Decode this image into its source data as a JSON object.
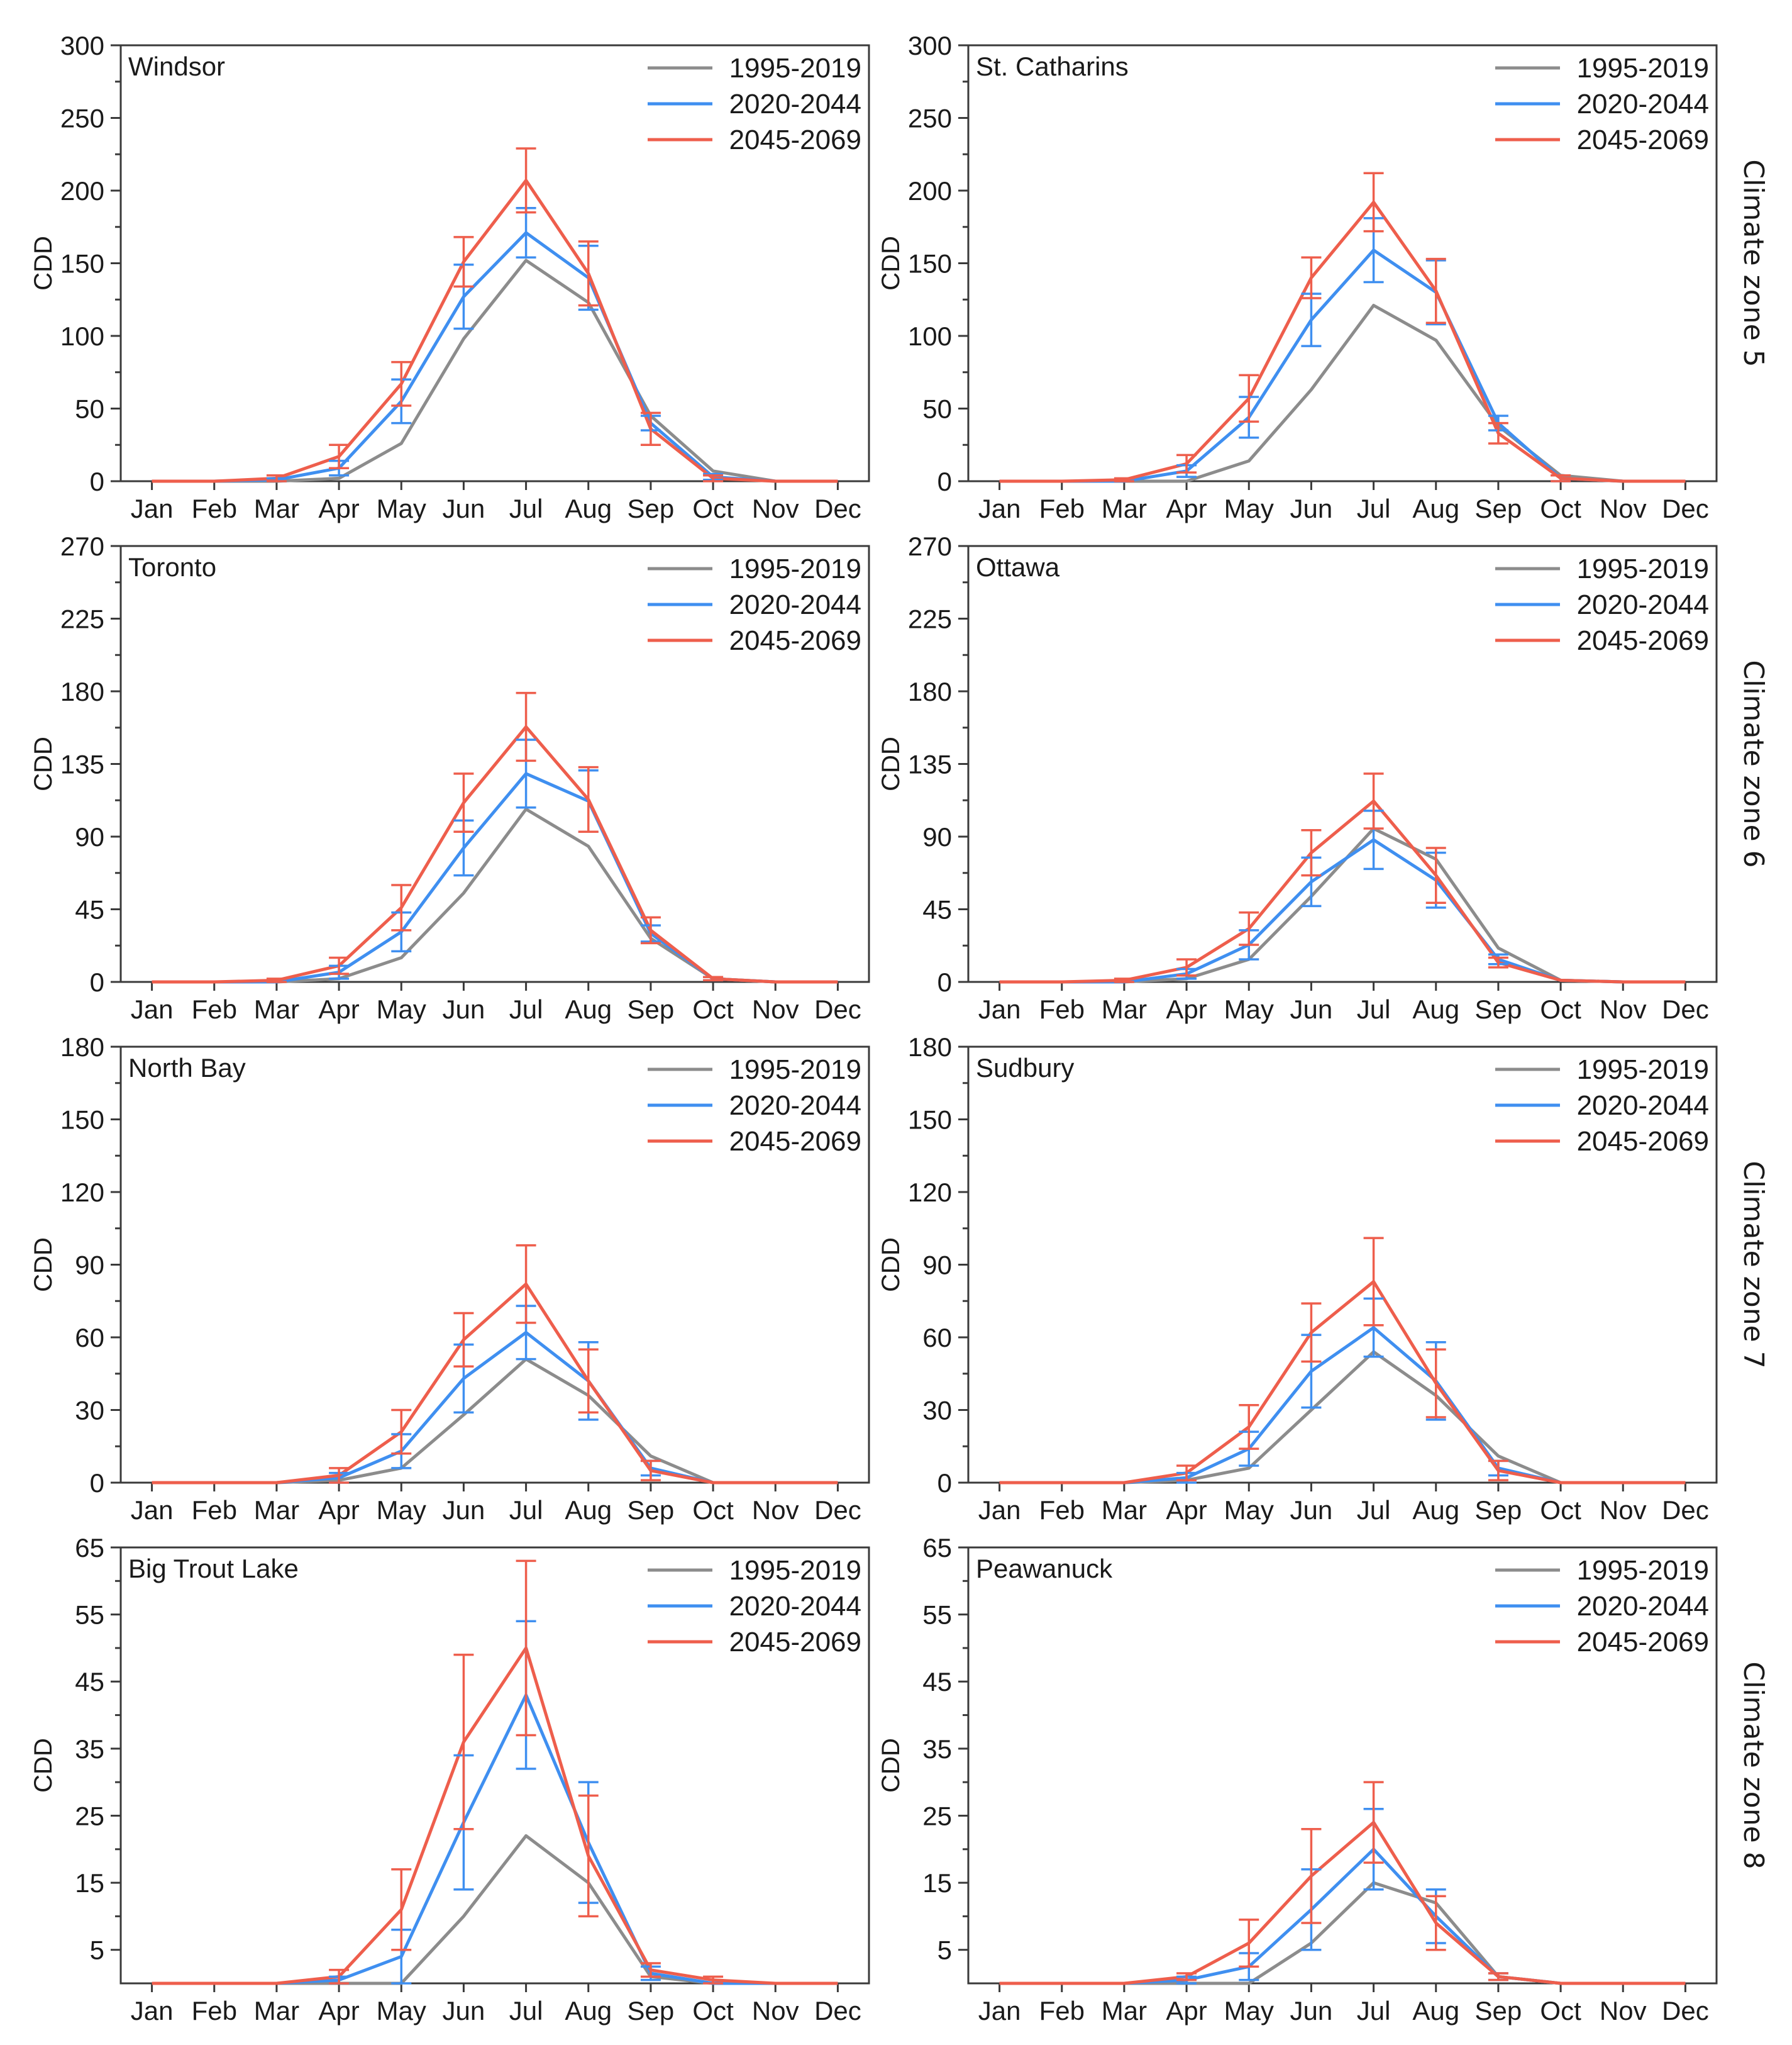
{
  "figure": {
    "months": [
      "Jan",
      "Feb",
      "Mar",
      "Apr",
      "May",
      "Jun",
      "Jul",
      "Aug",
      "Sep",
      "Oct",
      "Nov",
      "Dec"
    ],
    "ylabel": "CDD",
    "legend": [
      {
        "label": "1995-2019",
        "color": "#8c8c8c"
      },
      {
        "label": "2020-2044",
        "color": "#3f8ff0"
      },
      {
        "label": "2045-2069",
        "color": "#ee5e4c"
      }
    ],
    "zones": [
      "Climate zone 5",
      "Climate zone 6",
      "Climate zone 7",
      "Climate zone 8"
    ]
  },
  "chart_data": [
    {
      "type": "line",
      "title": "Windsor",
      "xlabel": "",
      "ylabel": "CDD",
      "ylim": [
        0,
        300
      ],
      "yticks": [
        0,
        50,
        100,
        150,
        200,
        250,
        300
      ],
      "categories": [
        "Jan",
        "Feb",
        "Mar",
        "Apr",
        "May",
        "Jun",
        "Jul",
        "Aug",
        "Sep",
        "Oct",
        "Nov",
        "Dec"
      ],
      "series": [
        {
          "name": "1995-2019",
          "values": [
            0,
            0,
            0,
            2,
            26,
            98,
            152,
            123,
            45,
            7,
            0,
            0
          ]
        },
        {
          "name": "2020-2044",
          "values": [
            0,
            0,
            1,
            9,
            55,
            127,
            171,
            140,
            40,
            3,
            0,
            0
          ],
          "errors": [
            0,
            0,
            1,
            5,
            15,
            22,
            17,
            22,
            5,
            2,
            0,
            0
          ]
        },
        {
          "name": "2045-2069",
          "values": [
            0,
            0,
            2,
            17,
            67,
            151,
            207,
            143,
            36,
            2,
            0,
            0
          ],
          "errors": [
            0,
            0,
            2,
            8,
            15,
            17,
            22,
            22,
            11,
            2,
            0,
            0
          ]
        }
      ]
    },
    {
      "type": "line",
      "title": "St. Catharins",
      "xlabel": "",
      "ylabel": "CDD",
      "ylim": [
        0,
        300
      ],
      "yticks": [
        0,
        50,
        100,
        150,
        200,
        250,
        300
      ],
      "categories": [
        "Jan",
        "Feb",
        "Mar",
        "Apr",
        "May",
        "Jun",
        "Jul",
        "Aug",
        "Sep",
        "Oct",
        "Nov",
        "Dec"
      ],
      "series": [
        {
          "name": "1995-2019",
          "values": [
            0,
            0,
            0,
            0,
            14,
            63,
            121,
            97,
            38,
            4,
            0,
            0
          ]
        },
        {
          "name": "2020-2044",
          "values": [
            0,
            0,
            0,
            7,
            44,
            111,
            159,
            130,
            40,
            2,
            0,
            0
          ],
          "errors": [
            0,
            0,
            0,
            4,
            14,
            18,
            22,
            22,
            5,
            2,
            0,
            0
          ]
        },
        {
          "name": "2045-2069",
          "values": [
            0,
            0,
            1,
            12,
            57,
            140,
            192,
            131,
            33,
            2,
            0,
            0
          ],
          "errors": [
            0,
            0,
            1,
            6,
            16,
            14,
            20,
            22,
            7,
            2,
            0,
            0
          ]
        }
      ]
    },
    {
      "type": "line",
      "title": "Toronto",
      "xlabel": "",
      "ylabel": "CDD",
      "ylim": [
        0,
        270
      ],
      "yticks": [
        0,
        45,
        90,
        135,
        180,
        225,
        270
      ],
      "categories": [
        "Jan",
        "Feb",
        "Mar",
        "Apr",
        "May",
        "Jun",
        "Jul",
        "Aug",
        "Sep",
        "Oct",
        "Nov",
        "Dec"
      ],
      "series": [
        {
          "name": "1995-2019",
          "values": [
            0,
            0,
            0,
            2,
            15,
            55,
            107,
            84,
            27,
            2,
            0,
            0
          ]
        },
        {
          "name": "2020-2044",
          "values": [
            0,
            0,
            0,
            6,
            31,
            83,
            129,
            112,
            30,
            2,
            0,
            0
          ],
          "errors": [
            0,
            0,
            0,
            4,
            12,
            17,
            21,
            19,
            5,
            1,
            0,
            0
          ]
        },
        {
          "name": "2045-2069",
          "values": [
            0,
            0,
            1,
            10,
            46,
            111,
            158,
            113,
            32,
            2,
            0,
            0
          ],
          "errors": [
            0,
            0,
            1,
            5,
            14,
            18,
            21,
            20,
            8,
            1,
            0,
            0
          ]
        }
      ]
    },
    {
      "type": "line",
      "title": "Ottawa",
      "xlabel": "",
      "ylabel": "CDD",
      "ylim": [
        0,
        270
      ],
      "yticks": [
        0,
        45,
        90,
        135,
        180,
        225,
        270
      ],
      "categories": [
        "Jan",
        "Feb",
        "Mar",
        "Apr",
        "May",
        "Jun",
        "Jul",
        "Aug",
        "Sep",
        "Oct",
        "Nov",
        "Dec"
      ],
      "series": [
        {
          "name": "1995-2019",
          "values": [
            0,
            0,
            0,
            2,
            14,
            53,
            95,
            76,
            21,
            1,
            0,
            0
          ]
        },
        {
          "name": "2020-2044",
          "values": [
            0,
            0,
            0,
            5,
            23,
            62,
            88,
            63,
            14,
            1,
            0,
            0
          ],
          "errors": [
            0,
            0,
            0,
            3,
            9,
            15,
            18,
            17,
            3,
            0,
            0,
            0
          ]
        },
        {
          "name": "2045-2069",
          "values": [
            0,
            0,
            1,
            9,
            33,
            80,
            112,
            66,
            12,
            1,
            0,
            0
          ],
          "errors": [
            0,
            0,
            1,
            5,
            10,
            14,
            17,
            17,
            3,
            0,
            0,
            0
          ]
        }
      ]
    },
    {
      "type": "line",
      "title": "North Bay",
      "xlabel": "",
      "ylabel": "CDD",
      "ylim": [
        0,
        180
      ],
      "yticks": [
        0,
        30,
        60,
        90,
        120,
        150,
        180
      ],
      "categories": [
        "Jan",
        "Feb",
        "Mar",
        "Apr",
        "May",
        "Jun",
        "Jul",
        "Aug",
        "Sep",
        "Oct",
        "Nov",
        "Dec"
      ],
      "series": [
        {
          "name": "1995-2019",
          "values": [
            0,
            0,
            0,
            1,
            6,
            28,
            51,
            36,
            11,
            0,
            0,
            0
          ]
        },
        {
          "name": "2020-2044",
          "values": [
            0,
            0,
            0,
            2,
            13,
            43,
            62,
            42,
            6,
            0,
            0,
            0
          ],
          "errors": [
            0,
            0,
            0,
            2,
            7,
            14,
            11,
            16,
            3,
            0,
            0,
            0
          ]
        },
        {
          "name": "2045-2069",
          "values": [
            0,
            0,
            0,
            3,
            21,
            59,
            82,
            42,
            5,
            0,
            0,
            0
          ],
          "errors": [
            0,
            0,
            0,
            3,
            9,
            11,
            16,
            13,
            4,
            0,
            0,
            0
          ]
        }
      ]
    },
    {
      "type": "line",
      "title": "Sudbury",
      "xlabel": "",
      "ylabel": "CDD",
      "ylim": [
        0,
        180
      ],
      "yticks": [
        0,
        30,
        60,
        90,
        120,
        150,
        180
      ],
      "categories": [
        "Jan",
        "Feb",
        "Mar",
        "Apr",
        "May",
        "Jun",
        "Jul",
        "Aug",
        "Sep",
        "Oct",
        "Nov",
        "Dec"
      ],
      "series": [
        {
          "name": "1995-2019",
          "values": [
            0,
            0,
            0,
            1,
            6,
            30,
            54,
            36,
            11,
            0,
            0,
            0
          ]
        },
        {
          "name": "2020-2044",
          "values": [
            0,
            0,
            0,
            2,
            14,
            46,
            64,
            42,
            6,
            0,
            0,
            0
          ],
          "errors": [
            0,
            0,
            0,
            2,
            7,
            15,
            12,
            16,
            3,
            0,
            0,
            0
          ]
        },
        {
          "name": "2045-2069",
          "values": [
            0,
            0,
            0,
            4,
            23,
            62,
            83,
            41,
            5,
            0,
            0,
            0
          ],
          "errors": [
            0,
            0,
            0,
            3,
            9,
            12,
            18,
            14,
            4,
            0,
            0,
            0
          ]
        }
      ]
    },
    {
      "type": "line",
      "title": "Big Trout Lake",
      "xlabel": "",
      "ylabel": "CDD",
      "ylim": [
        0,
        65
      ],
      "yticks": [
        5,
        15,
        25,
        35,
        45,
        55,
        65
      ],
      "categories": [
        "Jan",
        "Feb",
        "Mar",
        "Apr",
        "May",
        "Jun",
        "Jul",
        "Aug",
        "Sep",
        "Oct",
        "Nov",
        "Dec"
      ],
      "series": [
        {
          "name": "1995-2019",
          "values": [
            0,
            0,
            0,
            0,
            0,
            10,
            22,
            15,
            1,
            0,
            0,
            0
          ]
        },
        {
          "name": "2020-2044",
          "values": [
            0,
            0,
            0,
            0.5,
            4,
            24,
            43,
            21,
            1.5,
            0,
            0,
            0
          ],
          "errors": [
            0,
            0,
            0,
            0.5,
            4,
            10,
            11,
            9,
            1,
            0,
            0,
            0
          ]
        },
        {
          "name": "2045-2069",
          "values": [
            0,
            0,
            0,
            1,
            11,
            36,
            50,
            19,
            2,
            0.5,
            0,
            0
          ],
          "errors": [
            0,
            0,
            0,
            1,
            6,
            13,
            13,
            9,
            1,
            0.5,
            0,
            0
          ]
        }
      ]
    },
    {
      "type": "line",
      "title": "Peawanuck",
      "xlabel": "",
      "ylabel": "CDD",
      "ylim": [
        0,
        65
      ],
      "yticks": [
        5,
        15,
        25,
        35,
        45,
        55,
        65
      ],
      "categories": [
        "Jan",
        "Feb",
        "Mar",
        "Apr",
        "May",
        "Jun",
        "Jul",
        "Aug",
        "Sep",
        "Oct",
        "Nov",
        "Dec"
      ],
      "series": [
        {
          "name": "1995-2019",
          "values": [
            0,
            0,
            0,
            0,
            0,
            6,
            15,
            12,
            1,
            0,
            0,
            0
          ]
        },
        {
          "name": "2020-2044",
          "values": [
            0,
            0,
            0,
            0.5,
            2.5,
            11,
            20,
            10,
            1,
            0,
            0,
            0
          ],
          "errors": [
            0,
            0,
            0,
            0.5,
            2,
            6,
            6,
            4,
            0.5,
            0,
            0,
            0
          ]
        },
        {
          "name": "2045-2069",
          "values": [
            0,
            0,
            0,
            1,
            6,
            16,
            24,
            9,
            1,
            0,
            0,
            0
          ],
          "errors": [
            0,
            0,
            0,
            0.5,
            3.5,
            7,
            6,
            4,
            0.5,
            0,
            0,
            0
          ]
        }
      ]
    }
  ]
}
